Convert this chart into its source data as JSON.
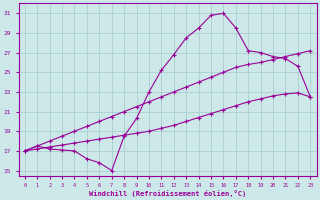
{
  "xlabel": "Windchill (Refroidissement éolien,°C)",
  "background_color": "#cce8e8",
  "grid_color": "#aad0d0",
  "line_color": "#990099",
  "x_ticks": [
    0,
    1,
    2,
    3,
    4,
    5,
    6,
    7,
    8,
    9,
    10,
    11,
    12,
    13,
    14,
    15,
    16,
    17,
    18,
    19,
    20,
    21,
    22,
    23
  ],
  "xlim": [
    -0.5,
    23.5
  ],
  "ylim": [
    14.5,
    32.0
  ],
  "y_ticks": [
    15,
    17,
    19,
    21,
    23,
    25,
    27,
    29,
    31
  ],
  "line1_x": [
    0,
    1,
    2,
    3,
    4,
    5,
    6,
    7,
    8,
    9,
    10,
    11,
    12,
    13,
    14,
    15,
    16,
    17,
    18,
    19,
    20,
    21,
    22,
    23
  ],
  "line1_y": [
    17.0,
    17.5,
    17.2,
    17.1,
    17.0,
    16.2,
    15.8,
    15.0,
    18.5,
    20.3,
    23.0,
    25.2,
    26.8,
    28.5,
    29.5,
    30.8,
    31.0,
    29.5,
    27.2,
    27.0,
    26.6,
    26.4,
    25.6,
    22.5
  ],
  "line2_x": [
    0,
    1,
    2,
    3,
    4,
    5,
    6,
    7,
    8,
    9,
    10,
    11,
    12,
    13,
    14,
    15,
    16,
    17,
    18,
    19,
    20,
    21,
    22,
    23
  ],
  "line2_y": [
    17.0,
    17.5,
    18.0,
    18.5,
    19.0,
    19.5,
    20.0,
    20.5,
    21.0,
    21.5,
    22.0,
    22.5,
    23.0,
    23.5,
    24.0,
    24.5,
    25.0,
    25.5,
    25.8,
    26.0,
    26.3,
    26.6,
    26.9,
    27.2
  ],
  "line3_x": [
    0,
    1,
    2,
    3,
    4,
    5,
    6,
    7,
    8,
    9,
    10,
    11,
    12,
    13,
    14,
    15,
    16,
    17,
    18,
    19,
    20,
    21,
    22,
    23
  ],
  "line3_y": [
    17.0,
    17.2,
    17.4,
    17.6,
    17.8,
    18.0,
    18.2,
    18.4,
    18.6,
    18.8,
    19.0,
    19.3,
    19.6,
    20.0,
    20.4,
    20.8,
    21.2,
    21.6,
    22.0,
    22.3,
    22.6,
    22.8,
    22.9,
    22.5
  ]
}
